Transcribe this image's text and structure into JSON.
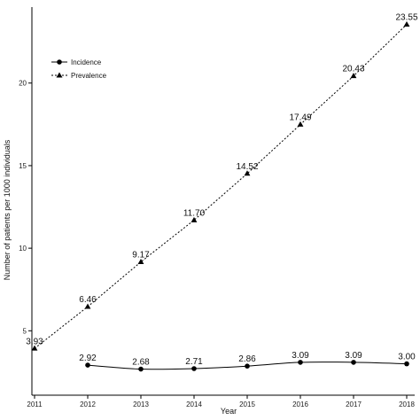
{
  "chart_data": {
    "type": "line",
    "title": "",
    "xlabel": "Year",
    "ylabel": "Number of patients per 1000 individuals",
    "x": [
      2011,
      2012,
      2013,
      2014,
      2015,
      2016,
      2017,
      2018
    ],
    "x_tick_labels": [
      "2011",
      "2012",
      "2013",
      "2014",
      "2015",
      "2016",
      "2017",
      "2018"
    ],
    "y_ticks": [
      5,
      10,
      15,
      20
    ],
    "y_tick_labels": [
      "5",
      "10",
      "15",
      "20"
    ],
    "ylim": [
      1.1,
      24.6
    ],
    "xlim": [
      2010.95,
      2018.15
    ],
    "grid": false,
    "legend_position": "top-left",
    "series": [
      {
        "name": "Incidence",
        "marker": "circle",
        "line_style": "solid",
        "x": [
          2012,
          2013,
          2014,
          2015,
          2016,
          2017,
          2018
        ],
        "values": [
          2.92,
          2.68,
          2.71,
          2.86,
          3.09,
          3.09,
          3.0
        ],
        "labels": [
          "2.92",
          "2.68",
          "2.71",
          "2.86",
          "3.09",
          "3.09",
          "3.00"
        ]
      },
      {
        "name": "Prevalence",
        "marker": "triangle",
        "line_style": "dotted",
        "x": [
          2011,
          2012,
          2013,
          2014,
          2015,
          2016,
          2017,
          2018
        ],
        "values": [
          3.93,
          6.46,
          9.17,
          11.7,
          14.52,
          17.49,
          20.43,
          23.55
        ],
        "labels": [
          "3.93",
          "6.46",
          "9.17",
          "11.70",
          "14.52",
          "17.49",
          "20.43",
          "23.55"
        ]
      }
    ],
    "colors": {
      "line": "#000000",
      "text": "#111111",
      "axis": "#000000"
    }
  }
}
